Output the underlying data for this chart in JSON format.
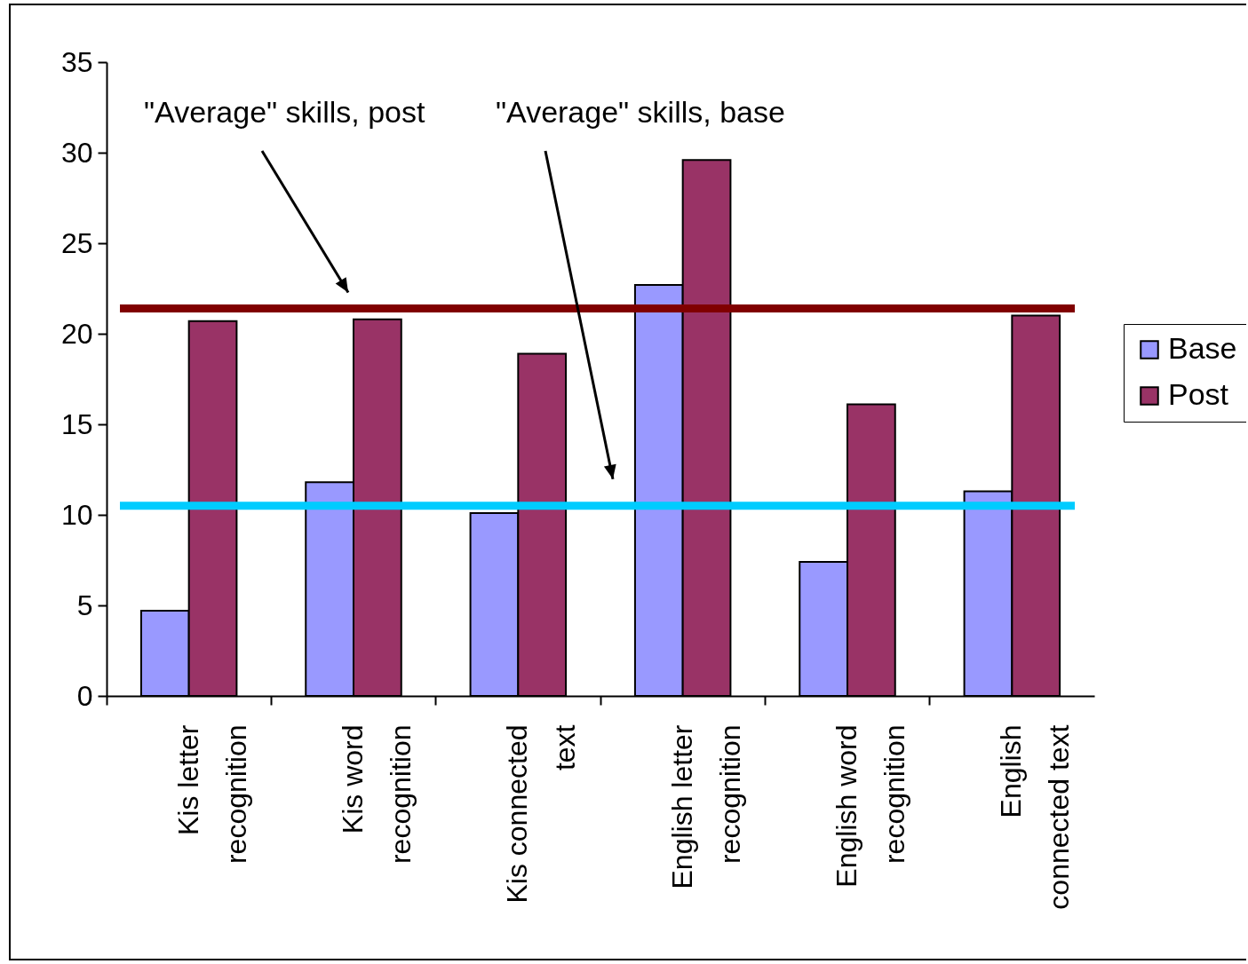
{
  "chart_data": {
    "type": "bar",
    "categories": [
      "Kis letter recognition",
      "Kis word recognition",
      "Kis connected text",
      "English letter recognition",
      "English word recognition",
      "English connected text"
    ],
    "series": [
      {
        "name": "Base",
        "color": "#9999ff",
        "values": [
          4.7,
          11.8,
          10.1,
          22.7,
          7.4,
          11.3
        ]
      },
      {
        "name": "Post",
        "color": "#993366",
        "values": [
          20.7,
          20.8,
          18.9,
          29.6,
          16.1,
          21.0
        ]
      }
    ],
    "ylim": [
      0,
      35
    ],
    "yticks": [
      0,
      5,
      10,
      15,
      20,
      25,
      30,
      35
    ],
    "grid": false,
    "legend": "right",
    "ref_lines": [
      {
        "axis": "y",
        "value": 21.4,
        "color": "#800000"
      },
      {
        "axis": "y",
        "value": 10.5,
        "color": "#00ccff"
      }
    ],
    "annotations": [
      "\"Average\" skills, post",
      "\"Average\" skills, base"
    ]
  }
}
